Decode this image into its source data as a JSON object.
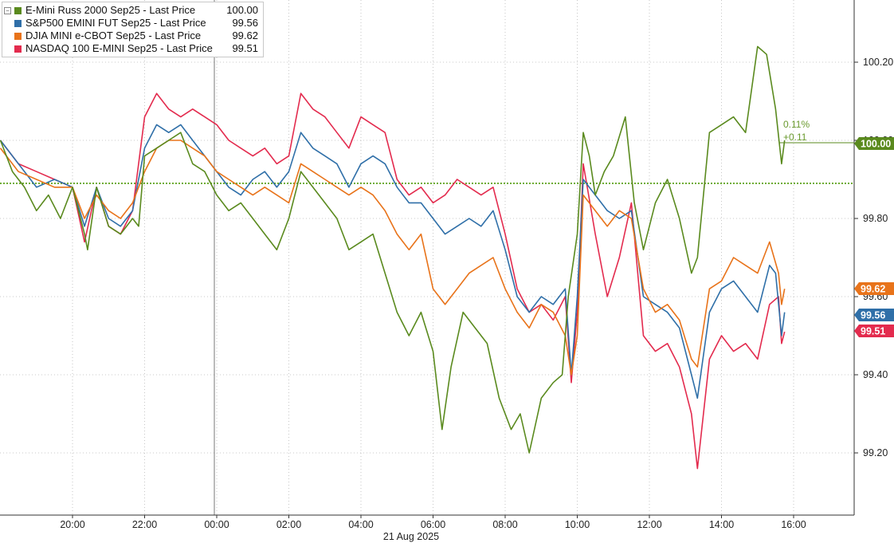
{
  "legend": {
    "collapse_icon": "minus-box-icon",
    "items": [
      {
        "name": "E-Mini Russ 2000 Sep25 - Last Price",
        "value": "100.00",
        "color": "#5a8a1e"
      },
      {
        "name": "S&P500 EMINI FUT Sep25 - Last Price",
        "value": "99.56",
        "color": "#2f6fa8"
      },
      {
        "name": "DJIA MINI e-CBOT Sep25 - Last Price",
        "value": "99.62",
        "color": "#e8731a"
      },
      {
        "name": "NASDAQ 100 E-MINI Sep25 - Last Price",
        "value": "99.51",
        "color": "#e32b4e"
      }
    ]
  },
  "annotation": {
    "pct": "0.11%",
    "abs": "+0.11"
  },
  "date_label": "21 Aug 2025",
  "chart_data": {
    "type": "line",
    "x_ticks": [
      "20:00",
      "22:00",
      "00:00",
      "02:00",
      "04:00",
      "06:00",
      "08:00",
      "10:00",
      "12:00",
      "14:00",
      "16:00"
    ],
    "x_range": [
      "18:00",
      "17:45"
    ],
    "y_ticks": [
      "99.20",
      "99.40",
      "99.60",
      "99.80",
      "100.00",
      "100.20"
    ],
    "ylim": [
      99.0,
      100.35
    ],
    "reference_line": 99.89,
    "grid": true,
    "legend_position": "top-left",
    "last_value_tags": [
      {
        "label": "100.00",
        "value": 100.0,
        "color": "#5a8a1e"
      },
      {
        "label": "99.62",
        "value": 99.62,
        "color": "#e8731a"
      },
      {
        "label": "99.56",
        "value": 99.56,
        "color": "#2f6fa8"
      },
      {
        "label": "99.51",
        "value": 99.51,
        "color": "#e32b4e"
      }
    ],
    "series": [
      {
        "name": "E-Mini Russ 2000 Sep25 - Last Price",
        "color": "#5a8a1e",
        "points": [
          [
            "18:00",
            100.0
          ],
          [
            "18:20",
            99.92
          ],
          [
            "18:40",
            99.88
          ],
          [
            "19:00",
            99.82
          ],
          [
            "19:20",
            99.86
          ],
          [
            "19:40",
            99.8
          ],
          [
            "20:00",
            99.88
          ],
          [
            "20:20",
            99.76
          ],
          [
            "20:25",
            99.72
          ],
          [
            "20:40",
            99.88
          ],
          [
            "21:00",
            99.78
          ],
          [
            "21:20",
            99.76
          ],
          [
            "21:40",
            99.8
          ],
          [
            "21:50",
            99.78
          ],
          [
            "22:00",
            99.96
          ],
          [
            "22:20",
            99.98
          ],
          [
            "22:40",
            100.0
          ],
          [
            "23:00",
            100.02
          ],
          [
            "23:20",
            99.94
          ],
          [
            "23:40",
            99.92
          ],
          [
            "00:00",
            99.86
          ],
          [
            "00:20",
            99.82
          ],
          [
            "00:40",
            99.84
          ],
          [
            "01:00",
            99.8
          ],
          [
            "01:20",
            99.76
          ],
          [
            "01:40",
            99.72
          ],
          [
            "02:00",
            99.8
          ],
          [
            "02:20",
            99.92
          ],
          [
            "02:40",
            99.88
          ],
          [
            "03:00",
            99.84
          ],
          [
            "03:20",
            99.8
          ],
          [
            "03:40",
            99.72
          ],
          [
            "04:00",
            99.74
          ],
          [
            "04:20",
            99.76
          ],
          [
            "04:40",
            99.66
          ],
          [
            "05:00",
            99.56
          ],
          [
            "05:20",
            99.5
          ],
          [
            "05:40",
            99.56
          ],
          [
            "06:00",
            99.46
          ],
          [
            "06:15",
            99.26
          ],
          [
            "06:30",
            99.42
          ],
          [
            "06:50",
            99.56
          ],
          [
            "07:10",
            99.52
          ],
          [
            "07:30",
            99.48
          ],
          [
            "07:50",
            99.34
          ],
          [
            "08:10",
            99.26
          ],
          [
            "08:25",
            99.3
          ],
          [
            "08:40",
            99.2
          ],
          [
            "09:00",
            99.34
          ],
          [
            "09:20",
            99.38
          ],
          [
            "09:35",
            99.4
          ],
          [
            "09:45",
            99.6
          ],
          [
            "10:00",
            99.76
          ],
          [
            "10:10",
            100.02
          ],
          [
            "10:20",
            99.96
          ],
          [
            "10:30",
            99.86
          ],
          [
            "10:45",
            99.92
          ],
          [
            "11:00",
            99.96
          ],
          [
            "11:20",
            100.06
          ],
          [
            "11:35",
            99.84
          ],
          [
            "11:50",
            99.72
          ],
          [
            "12:10",
            99.84
          ],
          [
            "12:30",
            99.9
          ],
          [
            "12:50",
            99.8
          ],
          [
            "13:10",
            99.66
          ],
          [
            "13:20",
            99.7
          ],
          [
            "13:40",
            100.02
          ],
          [
            "14:00",
            100.04
          ],
          [
            "14:20",
            100.06
          ],
          [
            "14:40",
            100.02
          ],
          [
            "15:00",
            100.24
          ],
          [
            "15:15",
            100.22
          ],
          [
            "15:30",
            100.08
          ],
          [
            "15:40",
            99.94
          ],
          [
            "15:45",
            100.0
          ]
        ]
      },
      {
        "name": "S&P500 EMINI FUT Sep25 - Last Price",
        "color": "#2f6fa8",
        "points": [
          [
            "18:00",
            100.0
          ],
          [
            "18:30",
            99.94
          ],
          [
            "19:00",
            99.88
          ],
          [
            "19:30",
            99.9
          ],
          [
            "20:00",
            99.88
          ],
          [
            "20:20",
            99.78
          ],
          [
            "20:40",
            99.88
          ],
          [
            "21:00",
            99.8
          ],
          [
            "21:20",
            99.78
          ],
          [
            "21:40",
            99.82
          ],
          [
            "22:00",
            99.98
          ],
          [
            "22:20",
            100.04
          ],
          [
            "22:40",
            100.02
          ],
          [
            "23:00",
            100.04
          ],
          [
            "23:20",
            100.0
          ],
          [
            "23:40",
            99.96
          ],
          [
            "00:00",
            99.92
          ],
          [
            "00:20",
            99.88
          ],
          [
            "00:40",
            99.86
          ],
          [
            "01:00",
            99.9
          ],
          [
            "01:20",
            99.92
          ],
          [
            "01:40",
            99.88
          ],
          [
            "02:00",
            99.92
          ],
          [
            "02:20",
            100.02
          ],
          [
            "02:40",
            99.98
          ],
          [
            "03:00",
            99.96
          ],
          [
            "03:20",
            99.94
          ],
          [
            "03:40",
            99.88
          ],
          [
            "04:00",
            99.94
          ],
          [
            "04:20",
            99.96
          ],
          [
            "04:40",
            99.94
          ],
          [
            "05:00",
            99.88
          ],
          [
            "05:20",
            99.84
          ],
          [
            "05:40",
            99.84
          ],
          [
            "06:00",
            99.8
          ],
          [
            "06:20",
            99.76
          ],
          [
            "06:40",
            99.78
          ],
          [
            "07:00",
            99.8
          ],
          [
            "07:20",
            99.78
          ],
          [
            "07:40",
            99.82
          ],
          [
            "08:00",
            99.72
          ],
          [
            "08:20",
            99.6
          ],
          [
            "08:40",
            99.56
          ],
          [
            "09:00",
            99.6
          ],
          [
            "09:20",
            99.58
          ],
          [
            "09:40",
            99.62
          ],
          [
            "09:50",
            99.4
          ],
          [
            "10:00",
            99.6
          ],
          [
            "10:10",
            99.9
          ],
          [
            "10:30",
            99.86
          ],
          [
            "10:50",
            99.82
          ],
          [
            "11:10",
            99.8
          ],
          [
            "11:30",
            99.82
          ],
          [
            "11:50",
            99.6
          ],
          [
            "12:10",
            99.58
          ],
          [
            "12:30",
            99.56
          ],
          [
            "12:50",
            99.52
          ],
          [
            "13:10",
            99.4
          ],
          [
            "13:20",
            99.34
          ],
          [
            "13:40",
            99.56
          ],
          [
            "14:00",
            99.62
          ],
          [
            "14:20",
            99.64
          ],
          [
            "14:40",
            99.6
          ],
          [
            "15:00",
            99.56
          ],
          [
            "15:20",
            99.68
          ],
          [
            "15:30",
            99.66
          ],
          [
            "15:40",
            99.5
          ],
          [
            "15:45",
            99.56
          ]
        ]
      },
      {
        "name": "DJIA MINI e-CBOT Sep25 - Last Price",
        "color": "#e8731a",
        "points": [
          [
            "18:00",
            99.98
          ],
          [
            "18:30",
            99.92
          ],
          [
            "19:00",
            99.9
          ],
          [
            "19:30",
            99.88
          ],
          [
            "20:00",
            99.88
          ],
          [
            "20:20",
            99.8
          ],
          [
            "20:40",
            99.86
          ],
          [
            "21:00",
            99.82
          ],
          [
            "21:20",
            99.8
          ],
          [
            "21:40",
            99.84
          ],
          [
            "22:00",
            99.92
          ],
          [
            "22:20",
            99.98
          ],
          [
            "22:40",
            100.0
          ],
          [
            "23:00",
            100.0
          ],
          [
            "23:20",
            99.98
          ],
          [
            "23:40",
            99.96
          ],
          [
            "00:00",
            99.92
          ],
          [
            "00:20",
            99.9
          ],
          [
            "00:40",
            99.88
          ],
          [
            "01:00",
            99.86
          ],
          [
            "01:20",
            99.88
          ],
          [
            "01:40",
            99.86
          ],
          [
            "02:00",
            99.84
          ],
          [
            "02:20",
            99.94
          ],
          [
            "02:40",
            99.92
          ],
          [
            "03:00",
            99.9
          ],
          [
            "03:20",
            99.88
          ],
          [
            "03:40",
            99.86
          ],
          [
            "04:00",
            99.88
          ],
          [
            "04:20",
            99.86
          ],
          [
            "04:40",
            99.82
          ],
          [
            "05:00",
            99.76
          ],
          [
            "05:20",
            99.72
          ],
          [
            "05:40",
            99.76
          ],
          [
            "06:00",
            99.62
          ],
          [
            "06:20",
            99.58
          ],
          [
            "06:40",
            99.62
          ],
          [
            "07:00",
            99.66
          ],
          [
            "07:20",
            99.68
          ],
          [
            "07:40",
            99.7
          ],
          [
            "08:00",
            99.62
          ],
          [
            "08:20",
            99.56
          ],
          [
            "08:40",
            99.52
          ],
          [
            "09:00",
            99.58
          ],
          [
            "09:20",
            99.56
          ],
          [
            "09:40",
            99.5
          ],
          [
            "09:50",
            99.4
          ],
          [
            "10:00",
            99.5
          ],
          [
            "10:10",
            99.86
          ],
          [
            "10:30",
            99.82
          ],
          [
            "10:50",
            99.78
          ],
          [
            "11:10",
            99.82
          ],
          [
            "11:30",
            99.8
          ],
          [
            "11:50",
            99.62
          ],
          [
            "12:10",
            99.56
          ],
          [
            "12:30",
            99.58
          ],
          [
            "12:50",
            99.54
          ],
          [
            "13:10",
            99.44
          ],
          [
            "13:20",
            99.42
          ],
          [
            "13:40",
            99.62
          ],
          [
            "14:00",
            99.64
          ],
          [
            "14:20",
            99.7
          ],
          [
            "14:40",
            99.68
          ],
          [
            "15:00",
            99.66
          ],
          [
            "15:20",
            99.74
          ],
          [
            "15:35",
            99.66
          ],
          [
            "15:40",
            99.58
          ],
          [
            "15:45",
            99.62
          ]
        ]
      },
      {
        "name": "NASDAQ 100 E-MINI Sep25 - Last Price",
        "color": "#e32b4e",
        "points": [
          [
            "18:00",
            100.0
          ],
          [
            "18:30",
            99.94
          ],
          [
            "19:00",
            99.92
          ],
          [
            "19:30",
            99.9
          ],
          [
            "20:00",
            99.88
          ],
          [
            "20:20",
            99.74
          ],
          [
            "20:40",
            99.88
          ],
          [
            "21:00",
            99.78
          ],
          [
            "21:20",
            99.76
          ],
          [
            "21:40",
            99.82
          ],
          [
            "22:00",
            100.06
          ],
          [
            "22:20",
            100.12
          ],
          [
            "22:40",
            100.08
          ],
          [
            "23:00",
            100.06
          ],
          [
            "23:20",
            100.08
          ],
          [
            "23:40",
            100.06
          ],
          [
            "00:00",
            100.04
          ],
          [
            "00:20",
            100.0
          ],
          [
            "00:40",
            99.98
          ],
          [
            "01:00",
            99.96
          ],
          [
            "01:20",
            99.98
          ],
          [
            "01:40",
            99.94
          ],
          [
            "02:00",
            99.96
          ],
          [
            "02:20",
            100.12
          ],
          [
            "02:40",
            100.08
          ],
          [
            "03:00",
            100.06
          ],
          [
            "03:20",
            100.02
          ],
          [
            "03:40",
            99.98
          ],
          [
            "04:00",
            100.06
          ],
          [
            "04:20",
            100.04
          ],
          [
            "04:40",
            100.02
          ],
          [
            "05:00",
            99.9
          ],
          [
            "05:20",
            99.86
          ],
          [
            "05:40",
            99.88
          ],
          [
            "06:00",
            99.84
          ],
          [
            "06:20",
            99.86
          ],
          [
            "06:40",
            99.9
          ],
          [
            "07:00",
            99.88
          ],
          [
            "07:20",
            99.86
          ],
          [
            "07:40",
            99.88
          ],
          [
            "08:00",
            99.76
          ],
          [
            "08:20",
            99.62
          ],
          [
            "08:40",
            99.56
          ],
          [
            "09:00",
            99.58
          ],
          [
            "09:20",
            99.54
          ],
          [
            "09:40",
            99.6
          ],
          [
            "09:50",
            99.38
          ],
          [
            "10:00",
            99.56
          ],
          [
            "10:10",
            99.94
          ],
          [
            "10:30",
            99.76
          ],
          [
            "10:50",
            99.6
          ],
          [
            "11:10",
            99.7
          ],
          [
            "11:30",
            99.84
          ],
          [
            "11:50",
            99.5
          ],
          [
            "12:10",
            99.46
          ],
          [
            "12:30",
            99.48
          ],
          [
            "12:50",
            99.42
          ],
          [
            "13:10",
            99.3
          ],
          [
            "13:20",
            99.16
          ],
          [
            "13:40",
            99.44
          ],
          [
            "14:00",
            99.5
          ],
          [
            "14:20",
            99.46
          ],
          [
            "14:40",
            99.48
          ],
          [
            "15:00",
            99.44
          ],
          [
            "15:20",
            99.58
          ],
          [
            "15:35",
            99.6
          ],
          [
            "15:40",
            99.48
          ],
          [
            "15:45",
            99.51
          ]
        ]
      }
    ]
  }
}
